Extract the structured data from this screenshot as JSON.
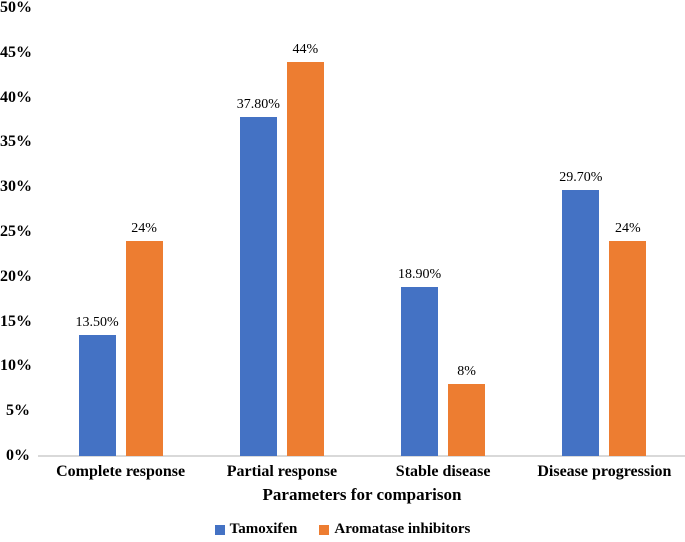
{
  "chart_data": {
    "type": "bar",
    "title": "",
    "categories": [
      "Complete response",
      "Partial response",
      "Stable disease",
      "Disease progression"
    ],
    "series": [
      {
        "name": "Tamoxifen",
        "color": "#4472C4",
        "values": [
          13.5,
          37.8,
          18.9,
          29.7
        ],
        "value_labels": [
          "13.50%",
          "37.80%",
          "18.90%",
          "29.70%"
        ]
      },
      {
        "name": "Aromatase inhibitors",
        "color": "#ED7D31",
        "values": [
          24,
          44,
          8,
          24
        ],
        "value_labels": [
          "24%",
          "44%",
          "8%",
          "24%"
        ]
      }
    ],
    "xlabel": "Parameters for comparison",
    "ylabel": "",
    "ylim": [
      0,
      50
    ],
    "ytick_step": 5,
    "ytick_labels": [
      "0%",
      "5%",
      "10%",
      "15%",
      "20%",
      "25%",
      "30%",
      "35%",
      "40%",
      "45%",
      "50%"
    ],
    "grid": false,
    "legend_position": "bottom",
    "baseline_color": "#D9D9D9",
    "text_color": "#000000"
  }
}
